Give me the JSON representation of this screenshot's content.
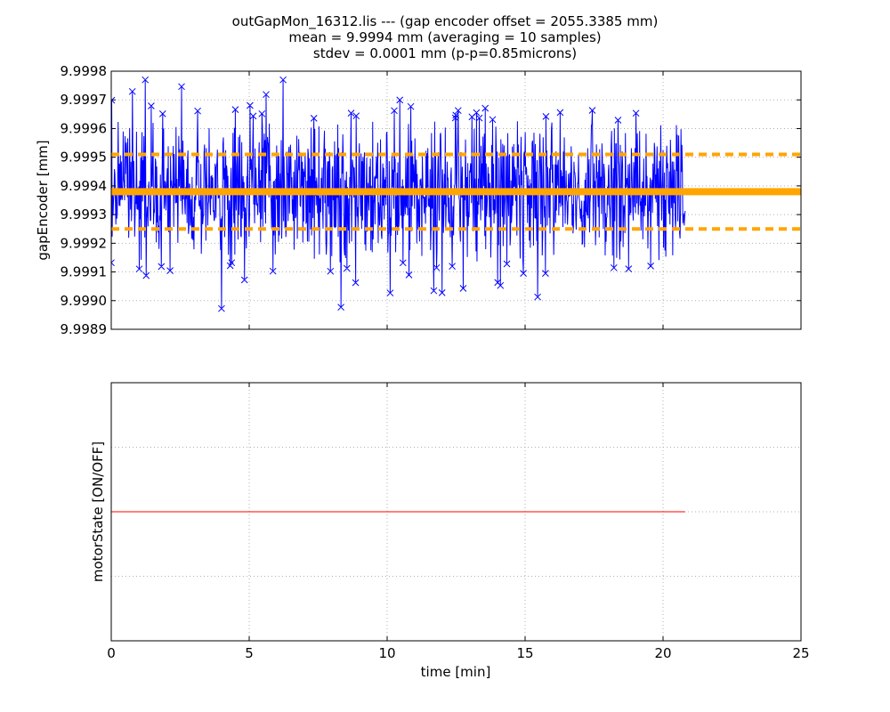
{
  "figure": {
    "title_lines": [
      "outGapMon_16312.lis --- (gap encoder offset = 2055.3385 mm)",
      "mean = 9.9994 mm (averaging = 10 samples)",
      "stdev = 0.0001 mm (p-p=0.85microns)"
    ]
  },
  "chart_data": [
    {
      "type": "line",
      "ylabel": "gapEncoder [mm]",
      "xlim": [
        0,
        25
      ],
      "ylim": [
        9.9989,
        9.9998
      ],
      "x_ticks": [
        0,
        5,
        10,
        15,
        20,
        25
      ],
      "y_ticks": [
        "9.9989",
        "9.9990",
        "9.9991",
        "9.9992",
        "9.9993",
        "9.9994",
        "9.9995",
        "9.9996",
        "9.9997",
        "9.9998"
      ],
      "grid": true,
      "series": [
        {
          "kind": "noisy_measurement",
          "color": "#0000ff",
          "marker": "x",
          "x_range": [
            0,
            20.8
          ],
          "n_points": 1250,
          "mean": 9.99938,
          "stdev": 0.00013,
          "min": 9.99892,
          "max": 9.99977
        },
        {
          "kind": "hline",
          "value": 9.99938,
          "color": "#ffa500",
          "style": "solid-thick"
        },
        {
          "kind": "hline",
          "value": 9.99951,
          "color": "#ffa500",
          "style": "dashed"
        },
        {
          "kind": "hline",
          "value": 9.99925,
          "color": "#ffa500",
          "style": "dashed"
        }
      ]
    },
    {
      "type": "line",
      "xlabel": "time [min]",
      "ylabel": "motorState [ON/OFF]",
      "xlim": [
        0,
        25
      ],
      "ylim": [
        0,
        1
      ],
      "x_ticks": [
        0,
        5,
        10,
        15,
        20,
        25
      ],
      "grid": true,
      "series": [
        {
          "color": "#ff0000",
          "x": [
            0,
            20.8
          ],
          "y": [
            0.5,
            0.5
          ]
        }
      ]
    }
  ]
}
